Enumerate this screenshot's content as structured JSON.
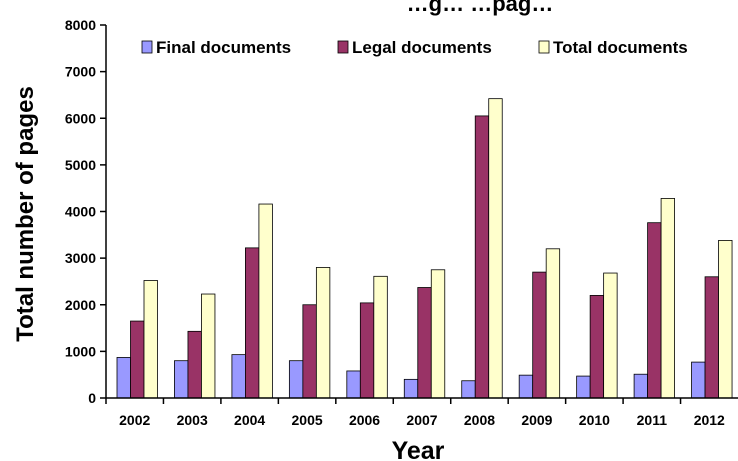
{
  "chart_data": {
    "type": "bar",
    "title": "…g… …pag…",
    "xlabel": "Year",
    "ylabel": "Total number of pages",
    "ylim": [
      0,
      8000
    ],
    "yticks": [
      "0",
      "1000",
      "2000",
      "3000",
      "4000",
      "5000",
      "6000",
      "7000",
      "8000"
    ],
    "categories": [
      "2002",
      "2003",
      "2004",
      "2005",
      "2006",
      "2007",
      "2008",
      "2009",
      "2010",
      "2011",
      "2012"
    ],
    "legend_position": "top",
    "grid": false,
    "series": [
      {
        "name": "Final documents",
        "color": "#9999ff",
        "values": [
          870,
          800,
          930,
          800,
          580,
          400,
          370,
          490,
          470,
          510,
          770
        ]
      },
      {
        "name": "Legal documents",
        "color": "#993366",
        "values": [
          1650,
          1430,
          3220,
          2000,
          2040,
          2370,
          6050,
          2700,
          2200,
          3760,
          2600
        ]
      },
      {
        "name": "Total documents",
        "color": "#ffffcc",
        "values": [
          2520,
          2230,
          4160,
          2800,
          2610,
          2750,
          6420,
          3200,
          2680,
          4280,
          3380
        ]
      }
    ]
  }
}
